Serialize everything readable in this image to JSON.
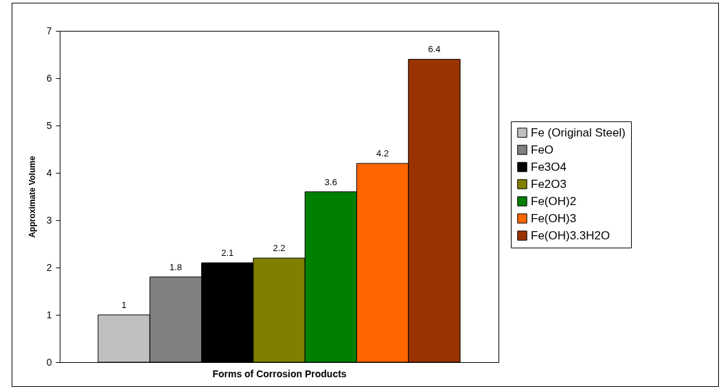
{
  "chart_data": {
    "type": "bar",
    "xlabel": "Forms of Corrosion Products",
    "ylabel": "Approximate Volume",
    "categories": [
      null
    ],
    "series": [
      {
        "name": "Fe (Original Steel)",
        "color": "#c0c0c0",
        "values": [
          1
        ]
      },
      {
        "name": "FeO",
        "color": "#808080",
        "values": [
          1.8
        ]
      },
      {
        "name": "Fe3O4",
        "color": "#000000",
        "values": [
          2.1
        ]
      },
      {
        "name": "Fe2O3",
        "color": "#808000",
        "values": [
          2.2
        ]
      },
      {
        "name": "Fe(OH)2",
        "color": "#008000",
        "values": [
          3.6
        ]
      },
      {
        "name": "Fe(OH)3",
        "color": "#ff6600",
        "values": [
          4.2
        ]
      },
      {
        "name": "Fe(OH)3.3H2O",
        "color": "#993300",
        "values": [
          6.4
        ]
      }
    ],
    "ylim": [
      0,
      7
    ],
    "yticks": [
      0,
      1,
      2,
      3,
      4,
      5,
      6,
      7
    ],
    "grid": false,
    "legend": "right",
    "data_labels": true
  }
}
